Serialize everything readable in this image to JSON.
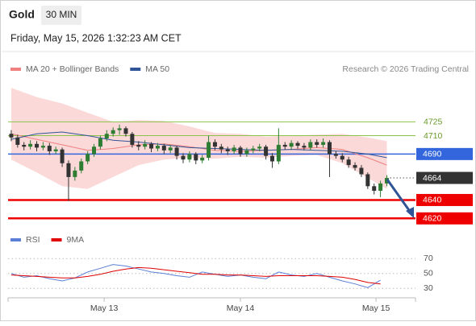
{
  "header": {
    "title": "Gold",
    "timeframe": "30 MIN",
    "timestamp": "Friday, May 15, 2026 1:32:23 AM CET"
  },
  "chart_data": [
    {
      "type": "candlestick",
      "source": "Research © 2026 Trading Central",
      "xlim": [
        -0.5,
        63.5
      ],
      "ylim": [
        4608,
        4770
      ],
      "candles": {
        "up_color": "#2e7d32",
        "down_color": "#333333",
        "open": [
          4712,
          4708,
          4700,
          4698,
          4701,
          4697,
          4699,
          4693,
          4695,
          4680,
          4665,
          4672,
          4682,
          4690,
          4698,
          4707,
          4712,
          4716,
          4718,
          4712,
          4700,
          4698,
          4701,
          4696,
          4699,
          4694,
          4697,
          4688,
          4684,
          4690,
          4683,
          4686,
          4703,
          4698,
          4695,
          4693,
          4697,
          4690,
          4694,
          4696,
          4698,
          4688,
          4682,
          4700,
          4698,
          4702,
          4699,
          4697,
          4703,
          4700,
          4703,
          4690,
          4688,
          4684,
          4678,
          4675,
          4668,
          4655,
          4650,
          4658
        ],
        "high": [
          4716,
          4711,
          4703,
          4705,
          4704,
          4703,
          4702,
          4698,
          4697,
          4683,
          4676,
          4685,
          4693,
          4701,
          4710,
          4716,
          4719,
          4722,
          4720,
          4714,
          4704,
          4705,
          4703,
          4702,
          4701,
          4700,
          4699,
          4691,
          4693,
          4692,
          4689,
          4710,
          4706,
          4701,
          4698,
          4700,
          4699,
          4697,
          4699,
          4701,
          4700,
          4691,
          4718,
          4703,
          4705,
          4704,
          4702,
          4706,
          4706,
          4707,
          4705,
          4693,
          4691,
          4687,
          4681,
          4678,
          4670,
          4658,
          4661,
          4667
        ],
        "low": [
          4704,
          4697,
          4694,
          4695,
          4693,
          4694,
          4689,
          4690,
          4676,
          4639,
          4661,
          4669,
          4679,
          4687,
          4695,
          4704,
          4709,
          4711,
          4709,
          4697,
          4694,
          4695,
          4692,
          4693,
          4690,
          4691,
          4684,
          4680,
          4681,
          4679,
          4680,
          4683,
          4694,
          4691,
          4689,
          4690,
          4687,
          4687,
          4691,
          4693,
          4684,
          4675,
          4679,
          4695,
          4695,
          4696,
          4694,
          4694,
          4697,
          4697,
          4665,
          4685,
          4681,
          4675,
          4672,
          4665,
          4652,
          4646,
          4643,
          4655
        ],
        "close": [
          4708,
          4700,
          4698,
          4701,
          4697,
          4699,
          4693,
          4695,
          4680,
          4665,
          4672,
          4682,
          4690,
          4698,
          4707,
          4712,
          4716,
          4718,
          4712,
          4700,
          4698,
          4701,
          4696,
          4699,
          4694,
          4697,
          4688,
          4684,
          4690,
          4683,
          4686,
          4703,
          4698,
          4695,
          4693,
          4697,
          4690,
          4694,
          4696,
          4698,
          4688,
          4682,
          4700,
          4698,
          4702,
          4699,
          4697,
          4703,
          4700,
          4703,
          4690,
          4688,
          4684,
          4678,
          4675,
          4668,
          4655,
          4650,
          4658,
          4664
        ]
      },
      "series": [
        {
          "name": "MA 20 + Bollinger Bands",
          "color": "#f08080",
          "band_color": "#fbd9d9",
          "x": [
            0,
            4,
            8,
            12,
            16,
            20,
            24,
            28,
            32,
            36,
            40,
            44,
            48,
            52,
            56,
            59
          ],
          "values": [
            4712,
            4706,
            4700,
            4694,
            4696,
            4700,
            4701,
            4698,
            4694,
            4693,
            4694,
            4695,
            4697,
            4695,
            4686,
            4678
          ],
          "upper": [
            4762,
            4752,
            4745,
            4735,
            4725,
            4727,
            4726,
            4720,
            4713,
            4712,
            4709,
            4710,
            4711,
            4712,
            4708,
            4704
          ],
          "lower": [
            4684,
            4670,
            4655,
            4652,
            4665,
            4678,
            4684,
            4686,
            4685,
            4687,
            4686,
            4688,
            4689,
            4680,
            4664,
            4652
          ]
        },
        {
          "name": "MA 50",
          "color": "#2f5597",
          "x": [
            0,
            4,
            8,
            12,
            16,
            20,
            24,
            28,
            32,
            36,
            40,
            44,
            48,
            52,
            56,
            59
          ],
          "values": [
            4706,
            4712,
            4714,
            4710,
            4705,
            4703,
            4700,
            4697,
            4696,
            4695,
            4694,
            4695,
            4694,
            4693,
            4690,
            4686
          ]
        }
      ],
      "levels": [
        {
          "value": 4725,
          "color": "#8bc34a",
          "boxed": false,
          "dotted": false,
          "line_width": 1
        },
        {
          "value": 4710,
          "color": "#8bc34a",
          "boxed": false,
          "dotted": false,
          "line_width": 1
        },
        {
          "value": 4690,
          "color": "#3366dd",
          "boxed": true,
          "dotted": false,
          "line_width": 1.5
        },
        {
          "value": 4664,
          "color": "#333333",
          "boxed": true,
          "dotted": true,
          "line_width": 1
        },
        {
          "value": 4640,
          "color": "#ee0000",
          "boxed": true,
          "dotted": false,
          "line_width": 2.5
        },
        {
          "value": 4620,
          "color": "#ee0000",
          "boxed": true,
          "dotted": false,
          "line_width": 2.5
        }
      ]
    },
    {
      "type": "line",
      "xlim": [
        -0.5,
        63.5
      ],
      "ylim": [
        20,
        80
      ],
      "yticks": [
        30,
        50,
        70
      ],
      "xticks": [
        {
          "value": 14.6,
          "label": "May 13"
        },
        {
          "value": 36,
          "label": "May 14"
        },
        {
          "value": 57.3,
          "label": "May 15"
        }
      ],
      "series": [
        {
          "name": "RSI",
          "color": "#5b7fd6",
          "x": [
            0,
            2,
            4,
            6,
            8,
            10,
            12,
            14,
            16,
            18,
            20,
            22,
            24,
            26,
            28,
            30,
            32,
            34,
            36,
            38,
            40,
            42,
            44,
            46,
            48,
            50,
            52,
            54,
            56,
            58
          ],
          "values": [
            50,
            45,
            47,
            43,
            40,
            44,
            52,
            57,
            62,
            60,
            56,
            52,
            50,
            47,
            45,
            52,
            49,
            46,
            48,
            45,
            43,
            52,
            48,
            46,
            50,
            45,
            40,
            36,
            31,
            41
          ]
        },
        {
          "name": "9MA",
          "color": "#e00000",
          "x": [
            0,
            2,
            4,
            6,
            8,
            10,
            12,
            14,
            16,
            18,
            20,
            22,
            24,
            26,
            28,
            30,
            32,
            34,
            36,
            38,
            40,
            42,
            44,
            46,
            48,
            50,
            52,
            54,
            56,
            58
          ],
          "values": [
            48,
            47,
            46,
            45,
            44,
            44,
            46,
            49,
            53,
            56,
            58,
            57,
            55,
            53,
            51,
            49,
            49,
            48,
            48,
            47,
            46,
            47,
            47,
            47,
            47,
            46,
            45,
            42,
            38,
            36
          ]
        }
      ]
    }
  ]
}
